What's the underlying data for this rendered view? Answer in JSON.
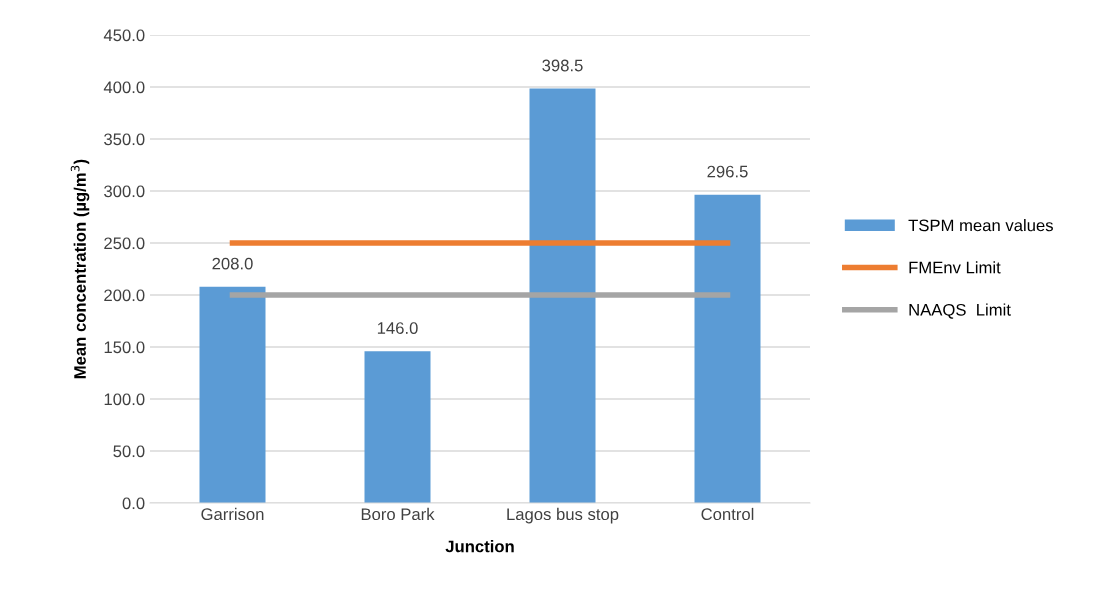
{
  "chart_data": {
    "type": "bar",
    "xlabel": "Junction",
    "ylabel": "Mean concentration (µg/m$^{3}$)",
    "categories": [
      "Garrison",
      "Boro Park",
      "Lagos bus stop",
      "Control"
    ],
    "series": [
      {
        "name": "TSPM mean values",
        "color": "#5b9bd5",
        "values": [
          208.0,
          146.0,
          398.5,
          296.5
        ],
        "value_labels": [
          "208.0",
          "146.0",
          "398.5",
          "296.5"
        ]
      },
      {
        "name": "FMEnv Limit",
        "type": "line",
        "color": "#ed7d31",
        "values": [
          250,
          250,
          250,
          250
        ]
      },
      {
        "name": "NAAQS  Limit",
        "type": "line",
        "color": "#a5a5a5",
        "values": [
          200,
          200,
          200,
          200
        ]
      }
    ],
    "ylim": [
      0,
      450
    ],
    "yticks": [
      {
        "value": 0,
        "label": "0.0"
      },
      {
        "value": 50,
        "label": "50.0"
      },
      {
        "value": 100,
        "label": "100.0"
      },
      {
        "value": 150,
        "label": "150.0"
      },
      {
        "value": 200,
        "label": "200.0"
      },
      {
        "value": 250,
        "label": "250.0"
      },
      {
        "value": 300,
        "label": "300.0"
      },
      {
        "value": 350,
        "label": "350.0"
      },
      {
        "value": 400,
        "label": "400.0"
      },
      {
        "value": 450,
        "label": "450.0"
      }
    ],
    "grid": "y",
    "legend": "right"
  }
}
